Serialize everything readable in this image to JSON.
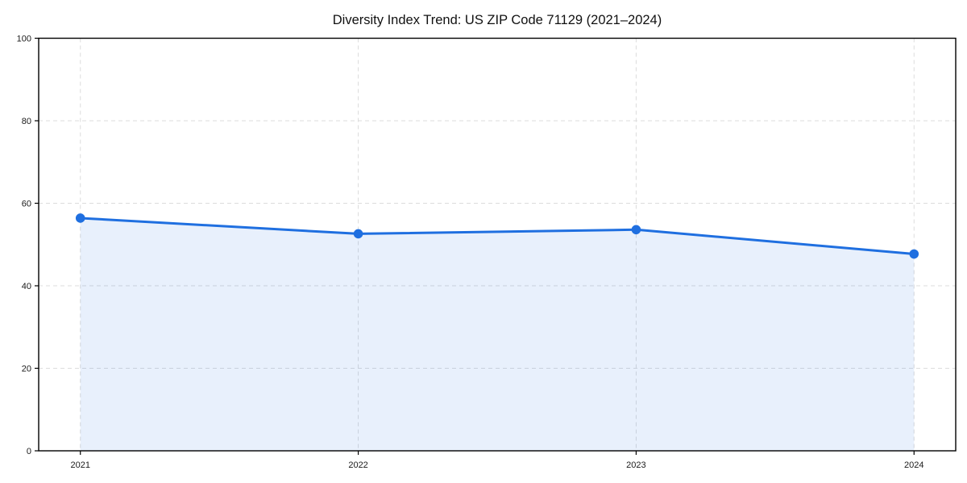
{
  "figure": {
    "background": "#ffffff",
    "border_color": "#000000"
  },
  "chart_data": {
    "type": "area",
    "title": "Diversity Index Trend: US ZIP Code 71129 (2021–2024)",
    "x": [
      2021,
      2022,
      2023,
      2024
    ],
    "categories": [
      "2021",
      "2022",
      "2023",
      "2024"
    ],
    "series": [
      {
        "name": "Diversity Index",
        "values": [
          56.4,
          52.6,
          53.6,
          47.7
        ],
        "color": "#1f6fe0",
        "fill": "rgba(31, 111, 224, 0.10)",
        "marker": "circle"
      }
    ],
    "xlabel": "",
    "ylabel": "",
    "ylim": [
      0,
      100
    ],
    "yticks": [
      0,
      20,
      40,
      60,
      80,
      100
    ],
    "x_margin_frac": 0.05,
    "grid": true,
    "grid_style": "dashed",
    "grid_color": "#dcdcdc",
    "legend": "none",
    "area_to_baseline": true
  }
}
